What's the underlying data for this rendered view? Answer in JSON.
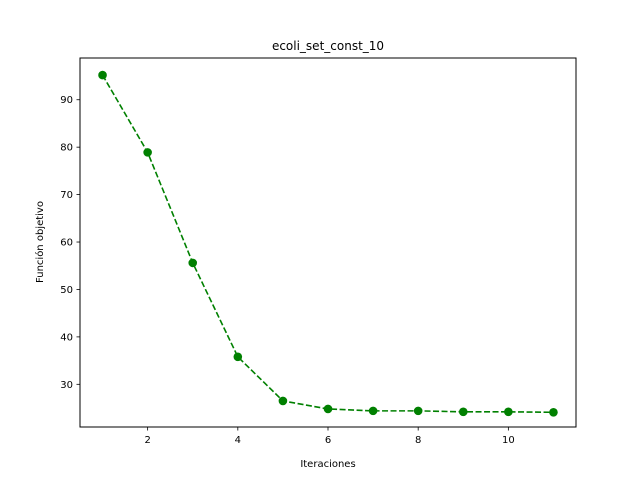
{
  "chart_data": {
    "type": "line",
    "title": "ecoli_set_const_10",
    "xlabel": "Iteraciones",
    "ylabel": "Función objetivo",
    "xlim": [
      0.5,
      11.5
    ],
    "ylim": [
      21.0,
      98.8
    ],
    "xticks": [
      2,
      4,
      6,
      8,
      10
    ],
    "yticks": [
      30,
      40,
      50,
      60,
      70,
      80,
      90
    ],
    "grid": false,
    "legend": "none",
    "series": [
      {
        "color": "#008000",
        "line_style": "dashed",
        "marker": "circle",
        "x": [
          1,
          2,
          3,
          4,
          5,
          6,
          7,
          8,
          9,
          10,
          11
        ],
        "y": [
          95.2,
          78.9,
          55.6,
          35.8,
          26.5,
          24.8,
          24.4,
          24.4,
          24.2,
          24.2,
          24.1
        ]
      }
    ]
  }
}
